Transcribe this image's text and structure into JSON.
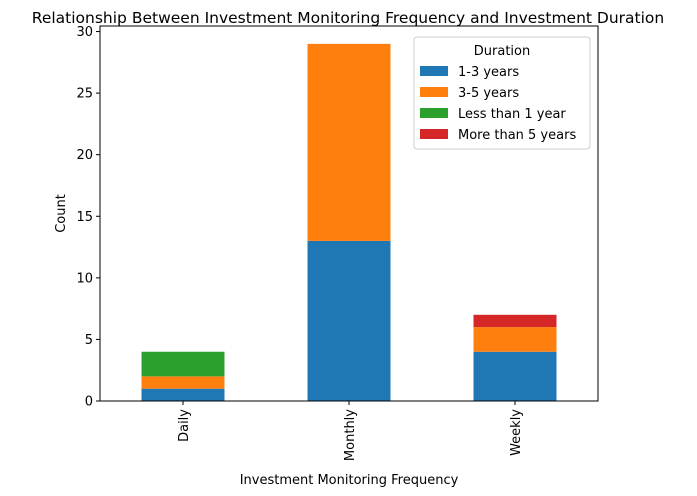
{
  "chart_data": {
    "type": "bar",
    "stacked": true,
    "title": "Relationship Between Investment Monitoring Frequency and Investment Duration",
    "xlabel": "Investment Monitoring Frequency",
    "ylabel": "Count",
    "categories": [
      "Daily",
      "Monthly",
      "Weekly"
    ],
    "series": [
      {
        "name": "1-3 years",
        "values": [
          1,
          13,
          4
        ],
        "color": "#1f77b4"
      },
      {
        "name": "3-5 years",
        "values": [
          1,
          16,
          2
        ],
        "color": "#ff7f0e"
      },
      {
        "name": "Less than 1 year",
        "values": [
          2,
          0,
          0
        ],
        "color": "#2ca02c"
      },
      {
        "name": "More than 5 years",
        "values": [
          0,
          0,
          1
        ],
        "color": "#d62728"
      }
    ],
    "ylim": [
      0,
      30.45
    ],
    "yticks": [
      0,
      5,
      10,
      15,
      20,
      25,
      30
    ],
    "legend": {
      "title": "Duration",
      "placement": "top-right"
    },
    "grid": false
  }
}
